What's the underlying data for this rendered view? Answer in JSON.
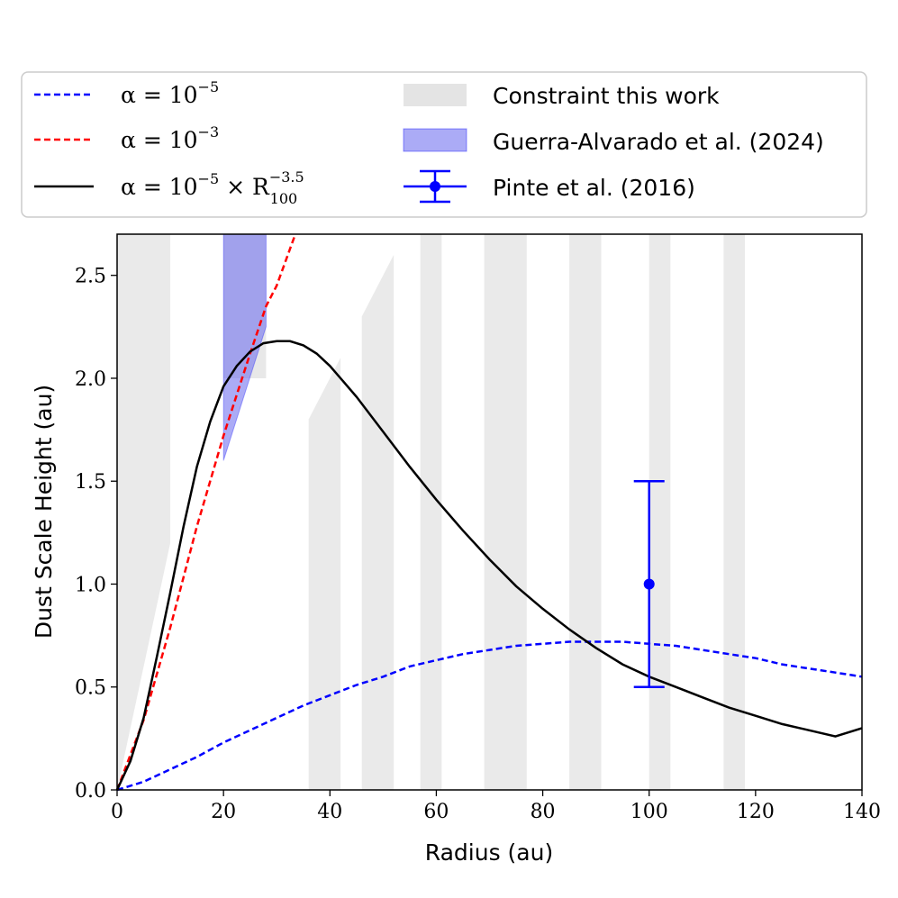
{
  "chart_data": {
    "type": "line",
    "xlabel": "Radius (au)",
    "ylabel": "Dust Scale Height (au)",
    "xlim": [
      0,
      140
    ],
    "ylim": [
      0,
      2.7
    ],
    "xticks": [
      0,
      20,
      40,
      60,
      80,
      100,
      120,
      140
    ],
    "xtick_labels": [
      "0",
      "20",
      "40",
      "60",
      "80",
      "100",
      "120",
      "140"
    ],
    "yticks": [
      0.0,
      0.5,
      1.0,
      1.5,
      2.0,
      2.5
    ],
    "ytick_labels": [
      "0.0",
      "0.5",
      "1.0",
      "1.5",
      "2.0",
      "2.5"
    ],
    "grid": false,
    "legend_position": "above plot",
    "colors": {
      "alpha_low": "#0000ff",
      "alpha_high": "#ff0000",
      "alpha_radial": "#000000",
      "constraint": "#d9d9d9",
      "guerra": "#6666ee",
      "pinte": "#0000ff"
    },
    "series": [
      {
        "name_parts": [
          "α = 10",
          "−5",
          "",
          ""
        ],
        "style": "dashed",
        "color": "#0000ff",
        "x": [
          0,
          5,
          10,
          15,
          20,
          25,
          30,
          35,
          40,
          45,
          50,
          55,
          60,
          65,
          70,
          75,
          80,
          85,
          90,
          95,
          100,
          105,
          110,
          115,
          120,
          125,
          130,
          135,
          140
        ],
        "y": [
          0.0,
          0.04,
          0.1,
          0.16,
          0.23,
          0.29,
          0.35,
          0.41,
          0.46,
          0.51,
          0.55,
          0.6,
          0.63,
          0.66,
          0.68,
          0.7,
          0.71,
          0.72,
          0.72,
          0.72,
          0.71,
          0.7,
          0.68,
          0.66,
          0.64,
          0.61,
          0.59,
          0.57,
          0.55
        ]
      },
      {
        "name_parts": [
          "α = 10",
          "−3",
          "",
          ""
        ],
        "style": "dashed",
        "color": "#ff0000",
        "x": [
          0,
          5,
          10,
          15,
          20,
          25,
          28,
          30,
          33.5
        ],
        "y": [
          0.0,
          0.34,
          0.79,
          1.28,
          1.72,
          2.12,
          2.35,
          2.45,
          2.7
        ]
      },
      {
        "name_parts": [
          "α = 10",
          "−5",
          " × R",
          "−3.5"
        ],
        "name_sub": "100",
        "style": "solid",
        "color": "#000000",
        "x": [
          0,
          2.5,
          5,
          7.5,
          10,
          12.5,
          15,
          17.5,
          20,
          22.5,
          25,
          27.5,
          30,
          32.5,
          35,
          37.5,
          40,
          45,
          50,
          55,
          60,
          65,
          70,
          75,
          80,
          85,
          90,
          95,
          100,
          105,
          110,
          115,
          120,
          125,
          130,
          135,
          140
        ],
        "y": [
          0.0,
          0.14,
          0.35,
          0.65,
          0.96,
          1.28,
          1.57,
          1.79,
          1.96,
          2.06,
          2.13,
          2.17,
          2.18,
          2.18,
          2.16,
          2.12,
          2.06,
          1.91,
          1.74,
          1.57,
          1.41,
          1.26,
          1.12,
          0.99,
          0.88,
          0.78,
          0.69,
          0.61,
          0.55,
          0.5,
          0.45,
          0.4,
          0.36,
          0.32,
          0.29,
          0.26,
          0.3
        ]
      }
    ],
    "constraint_bands": [
      {
        "x0": 0,
        "x1": 10,
        "top0": 0.0,
        "top1": 1.2,
        "cap": 2.7
      },
      {
        "x0": 36,
        "x1": 42,
        "top0": 1.8,
        "top1": 2.1
      },
      {
        "x0": 46,
        "x1": 52,
        "top0": 2.3,
        "top1": 2.6
      },
      {
        "x0": 57,
        "x1": 61,
        "top0": 2.7,
        "top1": 2.7
      },
      {
        "x0": 69,
        "x1": 77,
        "top0": 2.7,
        "top1": 2.7
      },
      {
        "x0": 85,
        "x1": 91,
        "top0": 2.7,
        "top1": 2.7
      },
      {
        "x0": 100,
        "x1": 104,
        "top0": 2.7,
        "top1": 2.7
      },
      {
        "x0": 114,
        "x1": 118,
        "top0": 2.7,
        "top1": 2.7
      }
    ],
    "guerra_region": {
      "x0": 20,
      "x1": 28,
      "lower_left": 1.6,
      "lower_right": 2.25,
      "upper": 2.7,
      "box_bottom": 2.0
    },
    "pinte_point": {
      "x": 100,
      "y": 1.0,
      "yerr_low": 0.5,
      "yerr_high": 1.5
    },
    "legend": {
      "constraint_label": "Constraint this work",
      "guerra_label": "Guerra-Alvarado et al. (2024)",
      "pinte_label": "Pinte et al. (2016)"
    }
  }
}
